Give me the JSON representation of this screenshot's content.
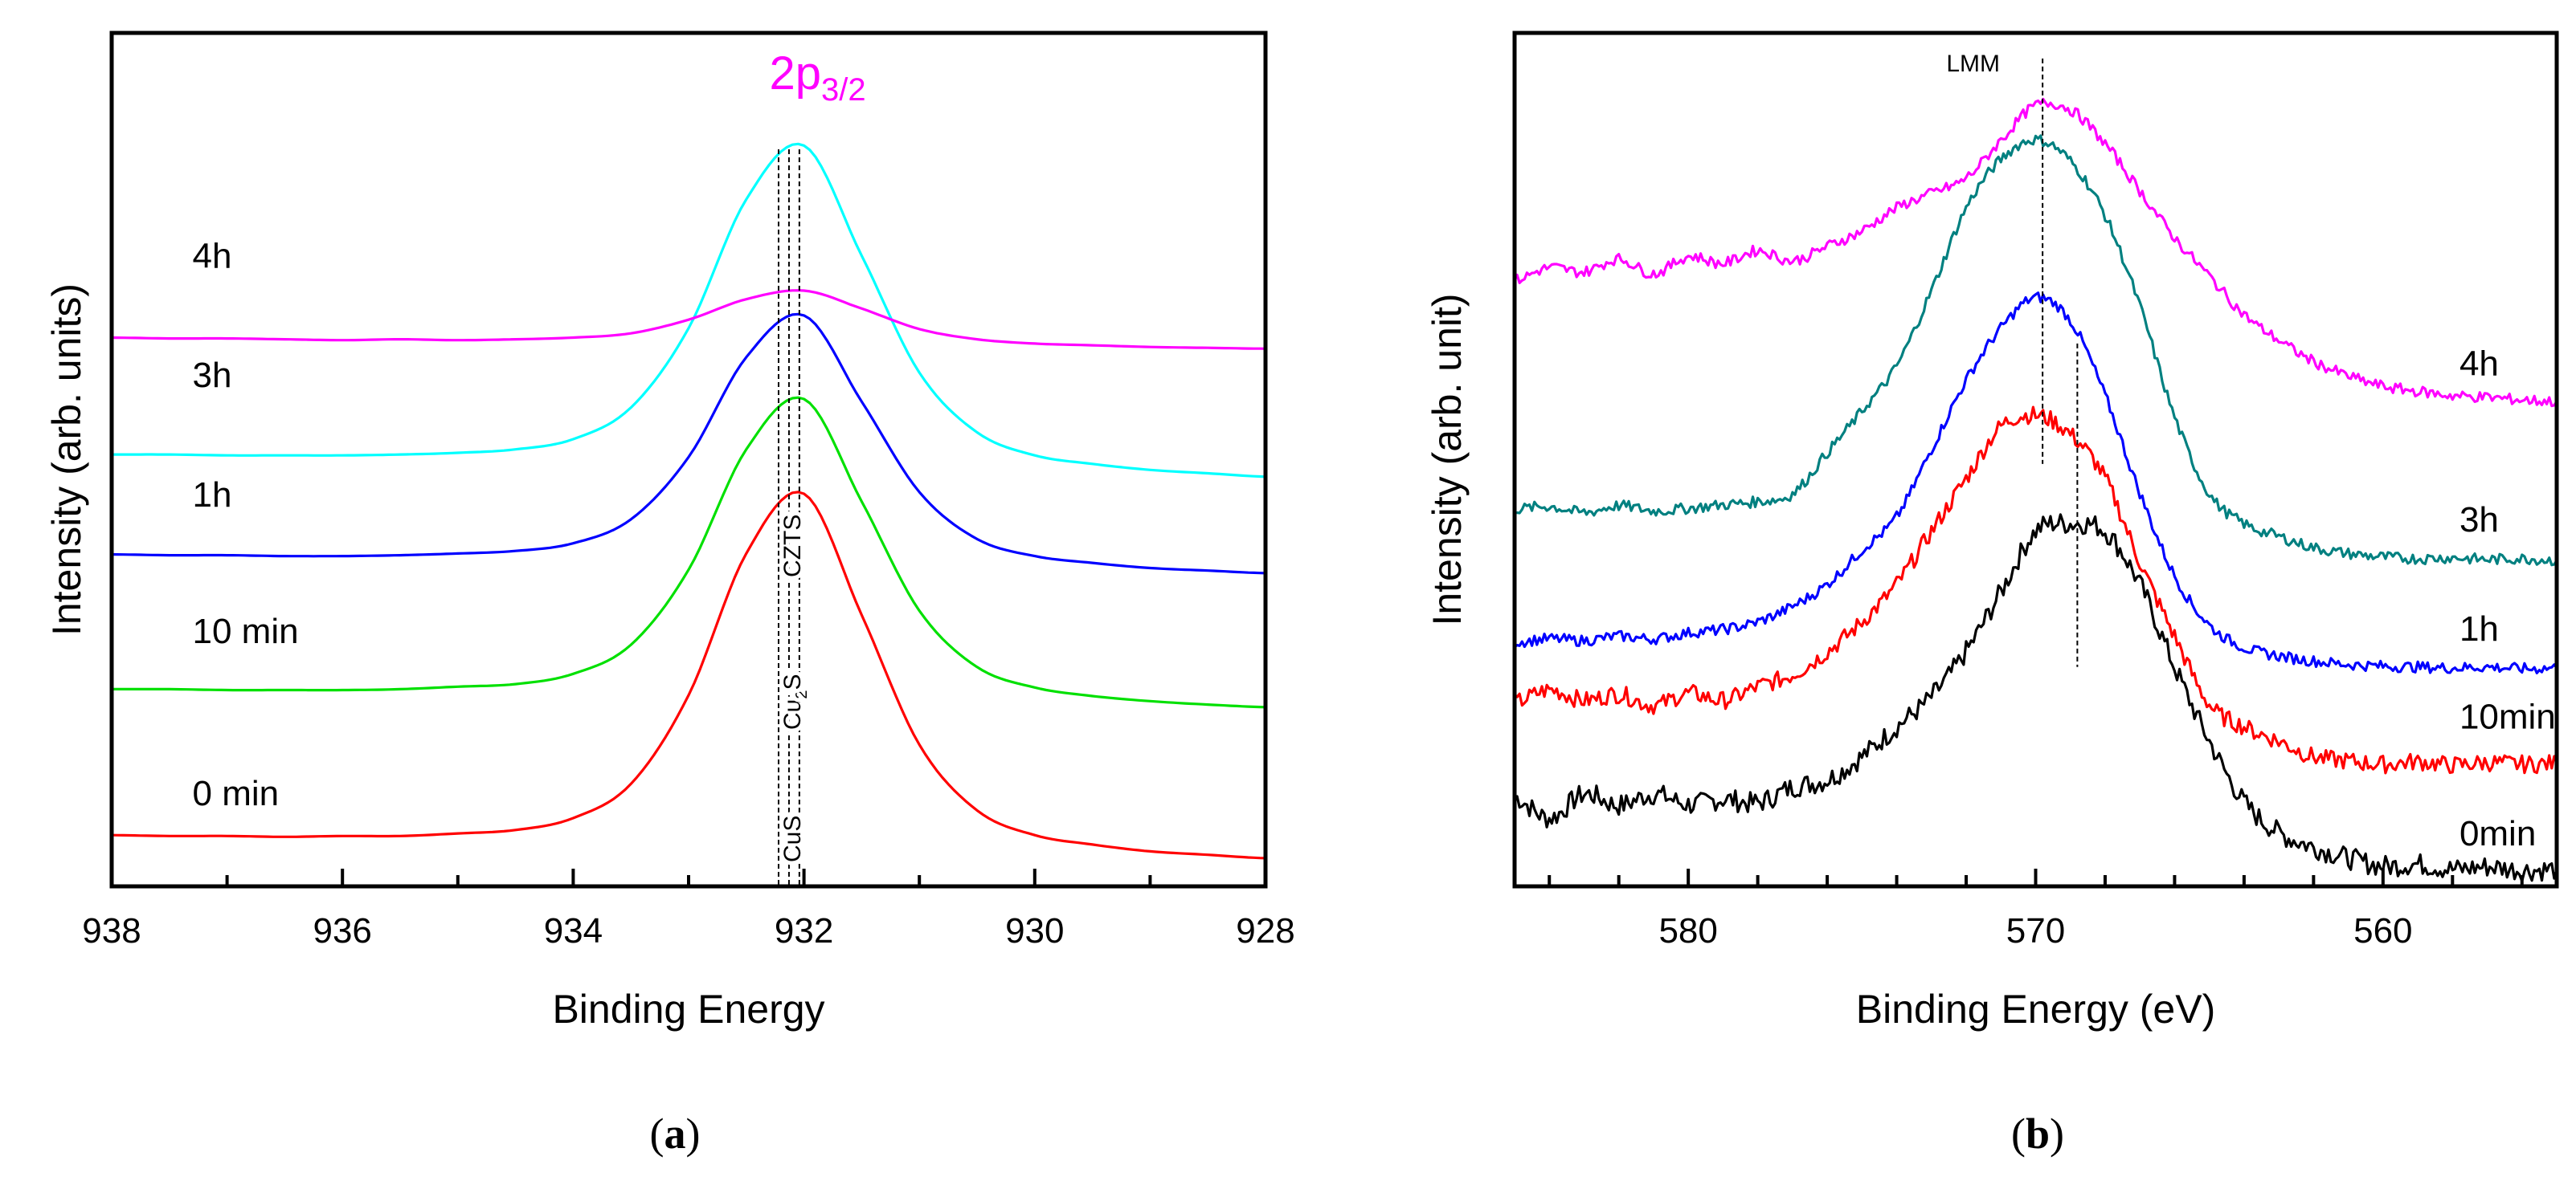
{
  "chart_data": [
    {
      "id": "a",
      "type": "line",
      "caption_letter": "a",
      "xlabel": "Binding Energy",
      "ylabel": "Intensity (arb. units)",
      "xlim": [
        938,
        928
      ],
      "ylim": [
        0,
        100
      ],
      "xticks": [
        "938",
        "936",
        "934",
        "932",
        "930",
        "928"
      ],
      "xtick_values": [
        938,
        936,
        934,
        932,
        930,
        928
      ],
      "minor_tick_step": 1,
      "grid": false,
      "x": [
        938,
        937.5,
        937,
        936.5,
        936,
        935.5,
        935,
        934.5,
        934,
        933.5,
        933,
        932.5,
        932,
        931.5,
        931,
        930.5,
        930,
        929.5,
        929,
        928.5,
        928
      ],
      "series": [
        {
          "name": "0 min",
          "color": "#ff0000",
          "label_at": [
            937.3,
            11
          ],
          "values": [
            6.0,
            5.9,
            5.9,
            5.8,
            5.9,
            5.9,
            6.2,
            6.6,
            8.0,
            12.0,
            22.4,
            39.0,
            46.0,
            31.8,
            16.6,
            8.9,
            6.0,
            4.9,
            4.1,
            3.7,
            3.3
          ]
        },
        {
          "name": "10 min",
          "color": "#00e000",
          "label_at": [
            937.3,
            30
          ],
          "values": [
            23.1,
            23.1,
            23.0,
            23.0,
            23.0,
            23.1,
            23.4,
            23.7,
            24.9,
            28.3,
            37.1,
            51.2,
            57.1,
            45.1,
            32.3,
            25.7,
            23.3,
            22.3,
            21.7,
            21.3,
            21.0
          ]
        },
        {
          "name": "1h",
          "color": "#0000ff",
          "label_at": [
            937.3,
            46
          ],
          "values": [
            38.9,
            38.8,
            38.8,
            38.7,
            38.7,
            38.8,
            39.0,
            39.3,
            40.2,
            43.0,
            50.3,
            62.0,
            66.9,
            56.8,
            46.2,
            40.7,
            38.7,
            37.9,
            37.3,
            37.0,
            36.7
          ]
        },
        {
          "name": "3h",
          "color": "#00ffff",
          "label_at": [
            937.3,
            60
          ],
          "values": [
            50.6,
            50.6,
            50.5,
            50.5,
            50.5,
            50.6,
            50.8,
            51.2,
            52.4,
            56.1,
            65.4,
            80.5,
            86.8,
            73.9,
            60.2,
            53.2,
            50.5,
            49.5,
            48.8,
            48.4,
            48.0
          ]
        },
        {
          "name": "4h",
          "color": "#ff00ff",
          "label_at": [
            937.3,
            74
          ],
          "values": [
            64.3,
            64.2,
            64.2,
            64.1,
            64.0,
            64.1,
            64.0,
            64.1,
            64.3,
            64.8,
            66.4,
            68.8,
            69.8,
            67.7,
            65.3,
            64.1,
            63.6,
            63.4,
            63.2,
            63.1,
            63.0
          ]
        }
      ],
      "annotations": {
        "peak_label_main": "2p",
        "peak_label_sub": "3/2",
        "peak_label_color": "#ff00ff",
        "reference_lines": [
          {
            "name": "CuS",
            "energy": 932.22
          },
          {
            "name": "Cu2S",
            "main": "Cu",
            "sub": "2",
            "tail": "S",
            "energy": 932.13
          },
          {
            "name": "CZTS",
            "energy": 932.04
          }
        ]
      }
    },
    {
      "id": "b",
      "type": "line",
      "caption_letter": "b",
      "xlabel": "Binding Energy (eV)",
      "ylabel": "Intensity (arb. unit)",
      "xlim": [
        585,
        555
      ],
      "ylim": [
        0,
        100
      ],
      "xticks": [
        "580",
        "570",
        "560"
      ],
      "xtick_values": [
        580,
        570,
        560
      ],
      "minor_tick_step": 2,
      "grid": false,
      "x": [
        585,
        584,
        583,
        582,
        581,
        580,
        579,
        578,
        577,
        576,
        575,
        574,
        573,
        572,
        571,
        570,
        569,
        568,
        567,
        566,
        565,
        564,
        563,
        562,
        561,
        560,
        559,
        558,
        557,
        556,
        555
      ],
      "series": [
        {
          "name": "0min",
          "color": "#000000",
          "label_at": [
            557.8,
            6.3
          ],
          "values": [
            10.5,
            8.0,
            10.8,
            9.5,
            10.8,
            9.6,
            10.2,
            9.8,
            11.6,
            12.5,
            15.2,
            18.7,
            22.2,
            27.5,
            34.5,
            41.6,
            42.5,
            41.6,
            35.4,
            25.7,
            17.0,
            9.9,
            6.3,
            4.6,
            3.3,
            2.4,
            2.6,
            2.0,
            2.3,
            1.9,
            2.0
          ]
        },
        {
          "name": "10min",
          "color": "#ff0000",
          "label_at": [
            557.8,
            20
          ],
          "values": [
            21.5,
            23.0,
            21.8,
            22.5,
            21.2,
            22.6,
            21.8,
            23.4,
            24.8,
            27.5,
            31.0,
            35.4,
            41.6,
            47.8,
            53.9,
            55.2,
            53.0,
            47.8,
            38.0,
            29.3,
            21.3,
            18.7,
            17.0,
            15.2,
            14.7,
            14.3,
            14.6,
            14.2,
            14.5,
            14.3,
            14.4
          ]
        },
        {
          "name": "1h",
          "color": "#0000ff",
          "label_at": [
            557.8,
            30.3
          ],
          "values": [
            28.6,
            29.0,
            28.8,
            29.3,
            29.0,
            29.7,
            30.1,
            31.0,
            32.8,
            35.4,
            39.4,
            43.3,
            51.2,
            59.3,
            65.4,
            69.0,
            66.3,
            57.5,
            46.1,
            36.4,
            30.6,
            28.0,
            27.0,
            26.4,
            26.0,
            25.8,
            25.7,
            25.6,
            25.7,
            25.5,
            25.6
          ]
        },
        {
          "name": "3h",
          "color": "#008080",
          "label_at": [
            557.8,
            43.1
          ],
          "values": [
            44.2,
            44.5,
            43.8,
            44.6,
            44.0,
            44.3,
            44.7,
            45.1,
            46.0,
            50.8,
            55.7,
            61.0,
            69.8,
            79.5,
            85.2,
            87.5,
            85.0,
            78.6,
            68.0,
            55.0,
            46.0,
            42.5,
            41.0,
            39.7,
            39.0,
            38.6,
            38.4,
            38.5,
            38.3,
            38.4,
            38.2
          ]
        },
        {
          "name": "4h",
          "color": "#ff00ff",
          "label_at": [
            557.8,
            61.4
          ],
          "values": [
            71.0,
            72.5,
            72.0,
            73.5,
            71.8,
            73.8,
            73.0,
            74.5,
            73.3,
            75.0,
            76.8,
            79.5,
            81.2,
            83.0,
            87.4,
            91.5,
            91.0,
            87.0,
            81.5,
            76.0,
            71.5,
            67.0,
            64.0,
            61.5,
            59.8,
            58.6,
            58.0,
            57.5,
            57.3,
            57.0,
            56.8
          ]
        }
      ],
      "annotations": {
        "peak_label": "LMM",
        "reference_lines": [
          {
            "energy": 569.8,
            "y_range": [
              49.5,
              97
            ]
          },
          {
            "energy": 568.8,
            "y_range": [
              25.7,
              63.6
            ]
          }
        ]
      }
    }
  ]
}
